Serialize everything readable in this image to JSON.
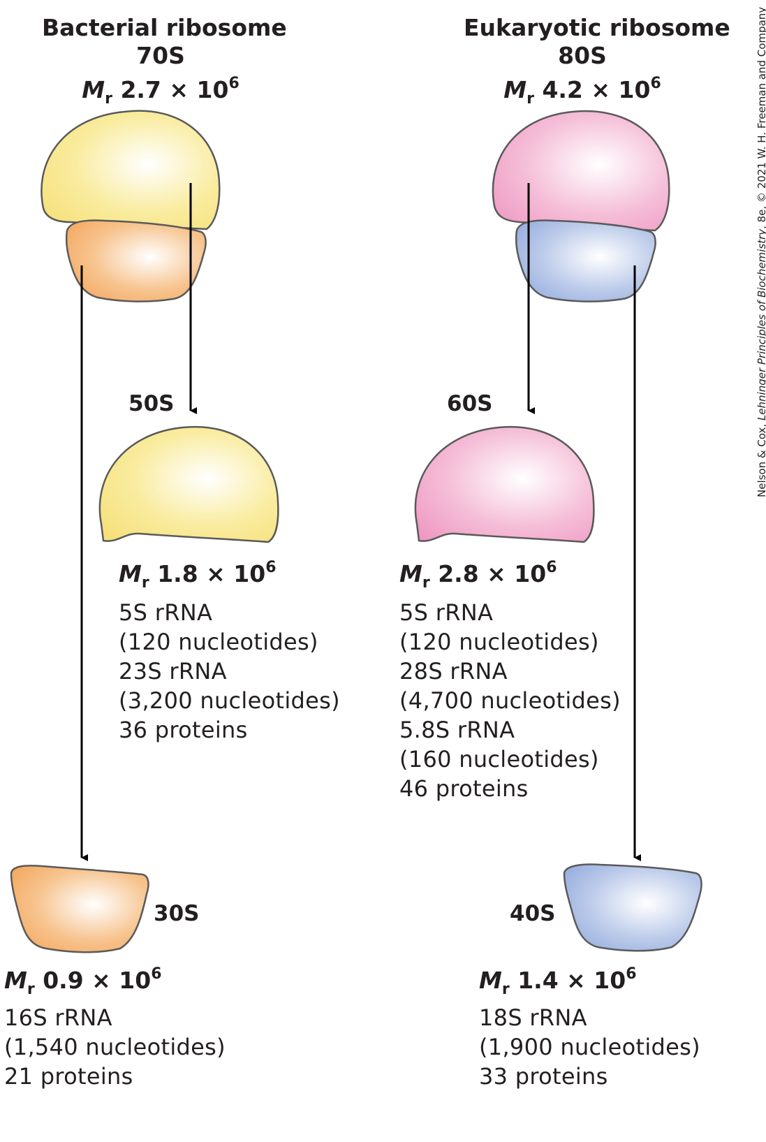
{
  "credit": {
    "authors": "Nelson & Cox, ",
    "book": "Lehninger Principles of Biochemistry",
    "rest": ", 8e, © 2021 W. H. Freeman and Company"
  },
  "colors": {
    "bacterial_large": "#f6e07a",
    "bacterial_small": "#f3a55b",
    "eukaryotic_large": "#ef99c2",
    "eukaryotic_small": "#92a9dc",
    "outline": "#5a5a5a",
    "arrow": "#000000"
  },
  "bacterial": {
    "title": "Bacterial ribosome",
    "sediment": "70S",
    "mr": {
      "symbol": "M",
      "sub": "r",
      "value": "2.7 × 10",
      "exp": "6"
    },
    "large": {
      "label": "50S",
      "mr": {
        "symbol": "M",
        "sub": "r",
        "value": "1.8 × 10",
        "exp": "6"
      },
      "components": [
        "5S rRNA",
        "(120 nucleotides)",
        "23S rRNA",
        "(3,200 nucleotides)",
        "36 proteins"
      ]
    },
    "small": {
      "label": "30S",
      "mr": {
        "symbol": "M",
        "sub": "r",
        "value": "0.9 × 10",
        "exp": "6"
      },
      "components": [
        "16S rRNA",
        "(1,540 nucleotides)",
        "21 proteins"
      ]
    }
  },
  "eukaryotic": {
    "title": "Eukaryotic ribosome",
    "sediment": "80S",
    "mr": {
      "symbol": "M",
      "sub": "r",
      "value": "4.2 × 10",
      "exp": "6"
    },
    "large": {
      "label": "60S",
      "mr": {
        "symbol": "M",
        "sub": "r",
        "value": "2.8 × 10",
        "exp": "6"
      },
      "components": [
        "5S rRNA",
        "(120 nucleotides)",
        "28S rRNA",
        "(4,700 nucleotides)",
        "5.8S rRNA",
        "(160 nucleotides)",
        "46 proteins"
      ]
    },
    "small": {
      "label": "40S",
      "mr": {
        "symbol": "M",
        "sub": "r",
        "value": "1.4 × 10",
        "exp": "6"
      },
      "components": [
        "18S rRNA",
        "(1,900 nucleotides)",
        "33 proteins"
      ]
    }
  }
}
